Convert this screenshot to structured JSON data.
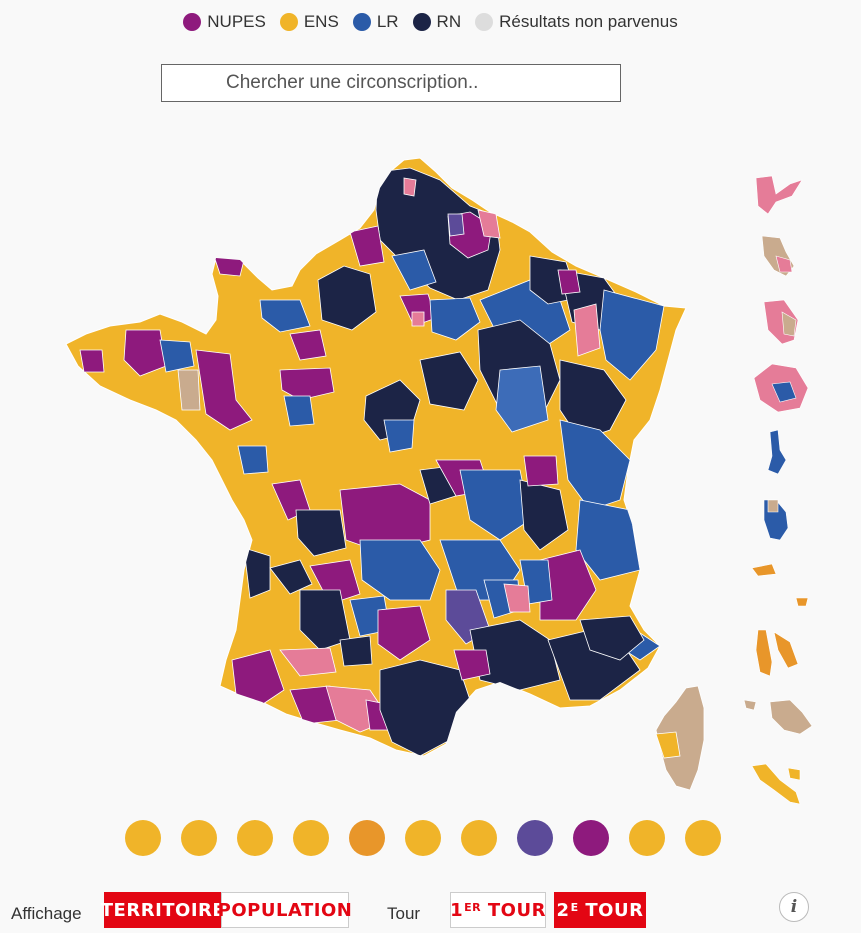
{
  "legend": [
    {
      "label": "NUPES",
      "color": "#8e1a7d"
    },
    {
      "label": "ENS",
      "color": "#f0b429"
    },
    {
      "label": "LR",
      "color": "#2b5ba8"
    },
    {
      "label": "RN",
      "color": "#1c2446"
    },
    {
      "label": "Résultats non parvenus",
      "color": "#dddddd"
    }
  ],
  "search": {
    "placeholder": "Chercher une circonscription.."
  },
  "colors": {
    "nupes": "#8e1a7d",
    "ens": "#f0b429",
    "lr": "#2b5ba8",
    "rn": "#1c2446",
    "pink": "#e57c98",
    "tan": "#c9ab8e",
    "violet": "#5c4b99",
    "orange": "#e8962a",
    "lr_light": "#3d6cb8"
  },
  "overseas_circles": [
    "#f0b429",
    "#f0b429",
    "#f0b429",
    "#f0b429",
    "#e8962a",
    "#f0b429",
    "#f0b429",
    "#5c4b99",
    "#8e1a7d",
    "#f0b429",
    "#f0b429"
  ],
  "controls": {
    "affichage_label": "Affichage",
    "territoire": "TERRITOIRE",
    "population": "POPULATION",
    "tour_label": "Tour",
    "tour1_num": "1",
    "tour1_sup": "ER",
    "tour1_word": "TOUR",
    "tour2_num": "2",
    "tour2_sup": "E",
    "tour2_word": "TOUR",
    "info": "i"
  }
}
